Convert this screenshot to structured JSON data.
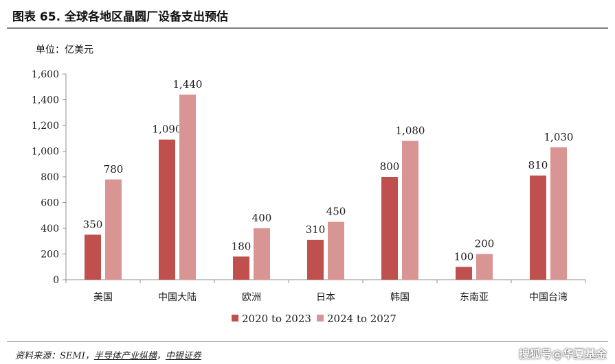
{
  "header": {
    "title": "图表 65. 全球各地区晶圆厂设备支出预估",
    "unit": "单位：亿美元"
  },
  "chart_data": {
    "type": "bar",
    "categories": [
      "美国",
      "中国大陆",
      "欧洲",
      "日本",
      "韩国",
      "东南亚",
      "中国台湾"
    ],
    "series": [
      {
        "name": "2020 to 2023",
        "values": [
          350,
          1090,
          180,
          310,
          800,
          100,
          810
        ],
        "color": "#c0504d"
      },
      {
        "name": "2024 to 2027",
        "values": [
          780,
          1440,
          400,
          450,
          1080,
          200,
          1030
        ],
        "color": "#d99594"
      }
    ],
    "value_labels": [
      [
        "350",
        "1,090",
        "180",
        "310",
        "800",
        "100",
        "810"
      ],
      [
        "780",
        "1,440",
        "400",
        "450",
        "1,080",
        "200",
        "1,030"
      ]
    ],
    "ylim": [
      0,
      1600
    ],
    "yticks": [
      0,
      200,
      400,
      600,
      800,
      1000,
      1200,
      1400,
      1600
    ],
    "ytick_labels": [
      "0",
      "200",
      "400",
      "600",
      "800",
      "1,000",
      "1,200",
      "1,400",
      "1,600"
    ],
    "grid": false,
    "legend_position": "bottom-center"
  },
  "footer": {
    "source_prefix": "资料来源：SEMI，",
    "source_link1": "半导体产业纵横",
    "source_sep": "，",
    "source_link2": "中银证券",
    "watermark": "搜狐号@华夏基金"
  }
}
